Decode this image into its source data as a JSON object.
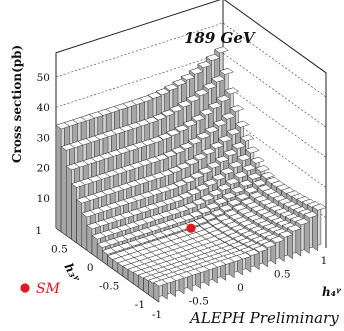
{
  "chart_data": {
    "type": "lego3d",
    "title": "189 GeV",
    "zlabel": "Cross section(pb)",
    "xlabel": "h₃ᵞ",
    "ylabel": "h₄ᵞ",
    "z_ticks": [
      "10",
      "20",
      "30",
      "40",
      "50"
    ],
    "x_ticks": [
      "1",
      "0.5",
      "0",
      "-0.5",
      "-1"
    ],
    "y_ticks": [
      "-1",
      "-0.5",
      "0",
      "0.5",
      "1"
    ],
    "zlim": [
      0,
      58
    ],
    "xlim": [
      -1,
      1
    ],
    "ylim": [
      -1,
      1
    ],
    "legend": [
      {
        "label": "SM",
        "color": "#e8141e",
        "marker": "circle"
      }
    ],
    "sm_point": {
      "x": 0,
      "y": 0
    },
    "annotation": "ALEPH Preliminary",
    "description_of_surface": "Minimum near SM point (h3=0,h4=0); cross section rises toward the h3=1 edge (~55 pb) and toward h4=1 (~15 pb)"
  },
  "colors": {
    "bar_top": "#ffffff",
    "bar_side_left": "#d3d3d3",
    "bar_side_front": "#a6a6a6",
    "frame": "#222222",
    "accent": "#e8141e"
  }
}
